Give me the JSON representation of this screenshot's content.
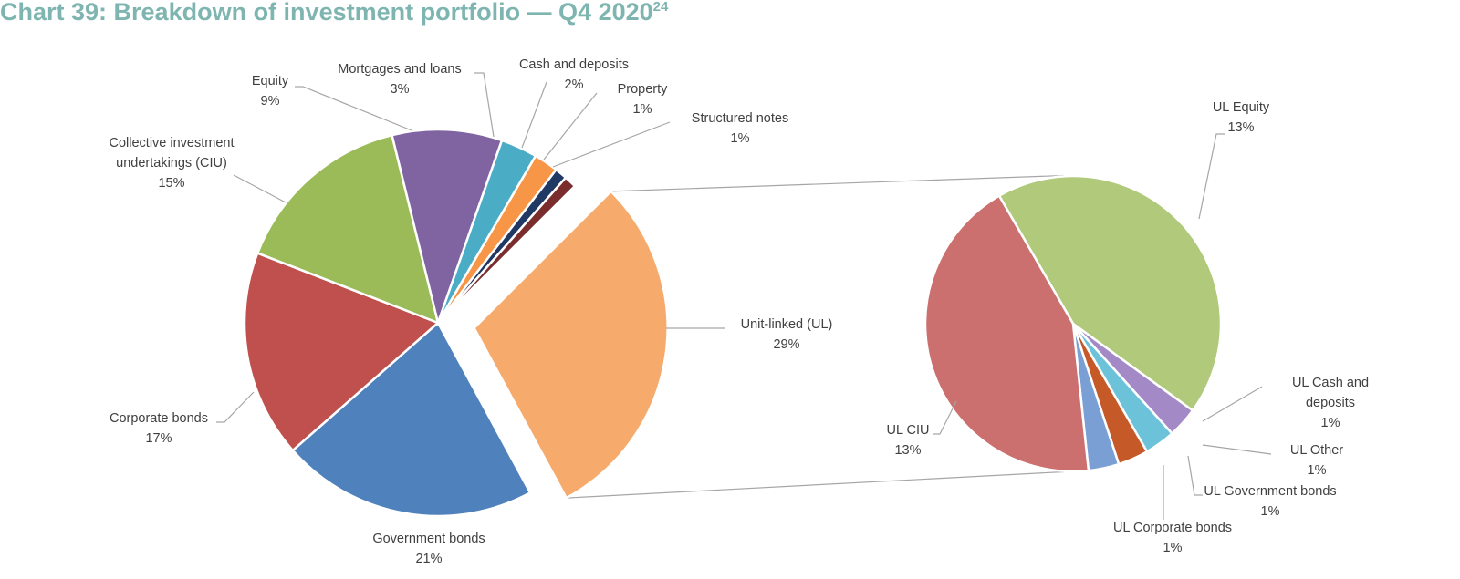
{
  "chart_data": {
    "type": "pie",
    "title": "Chart 39: Breakdown of investment portfolio — Q4 2020",
    "title_superscript": "24",
    "main_pie": {
      "slices": [
        {
          "name": "Unit-linked (UL)",
          "value": 29,
          "label": "29%",
          "color": "#f6aa6b",
          "exploded": true
        },
        {
          "name": "Government bonds",
          "value": 21,
          "label": "21%",
          "color": "#4f81bd"
        },
        {
          "name": "Corporate bonds",
          "value": 17,
          "label": "17%",
          "color": "#c0504d"
        },
        {
          "name": "Collective investment undertakings (CIU)",
          "value": 15,
          "label": "15%",
          "color": "#9bbb59"
        },
        {
          "name": "Equity",
          "value": 9,
          "label": "9%",
          "color": "#8064a2"
        },
        {
          "name": "Mortgages and loans",
          "value": 3,
          "label": "3%",
          "color": "#4bacc6"
        },
        {
          "name": "Cash and deposits",
          "value": 2,
          "label": "2%",
          "color": "#f79646"
        },
        {
          "name": "Property",
          "value": 1,
          "label": "1%",
          "color": "#1f3864"
        },
        {
          "name": "Structured notes",
          "value": 1,
          "label": "1%",
          "color": "#7b2c2c"
        }
      ]
    },
    "secondary_pie": {
      "parent": "Unit-linked (UL)",
      "slices": [
        {
          "name": "UL Equity",
          "value": 13,
          "label": "13%",
          "color": "#b0c97a"
        },
        {
          "name": "UL Cash and deposits",
          "value": 1,
          "label": "1%",
          "color": "#a38ac7"
        },
        {
          "name": "UL Other",
          "value": 1,
          "label": "1%",
          "color": "#6cc3d9"
        },
        {
          "name": "UL Government bonds",
          "value": 1,
          "label": "1%",
          "color": "#c55a28"
        },
        {
          "name": "UL Corporate bonds",
          "value": 1,
          "label": "1%",
          "color": "#7a9fd4"
        },
        {
          "name": "UL CIU",
          "value": 13,
          "label": "13%",
          "color": "#cb706f"
        }
      ]
    }
  }
}
